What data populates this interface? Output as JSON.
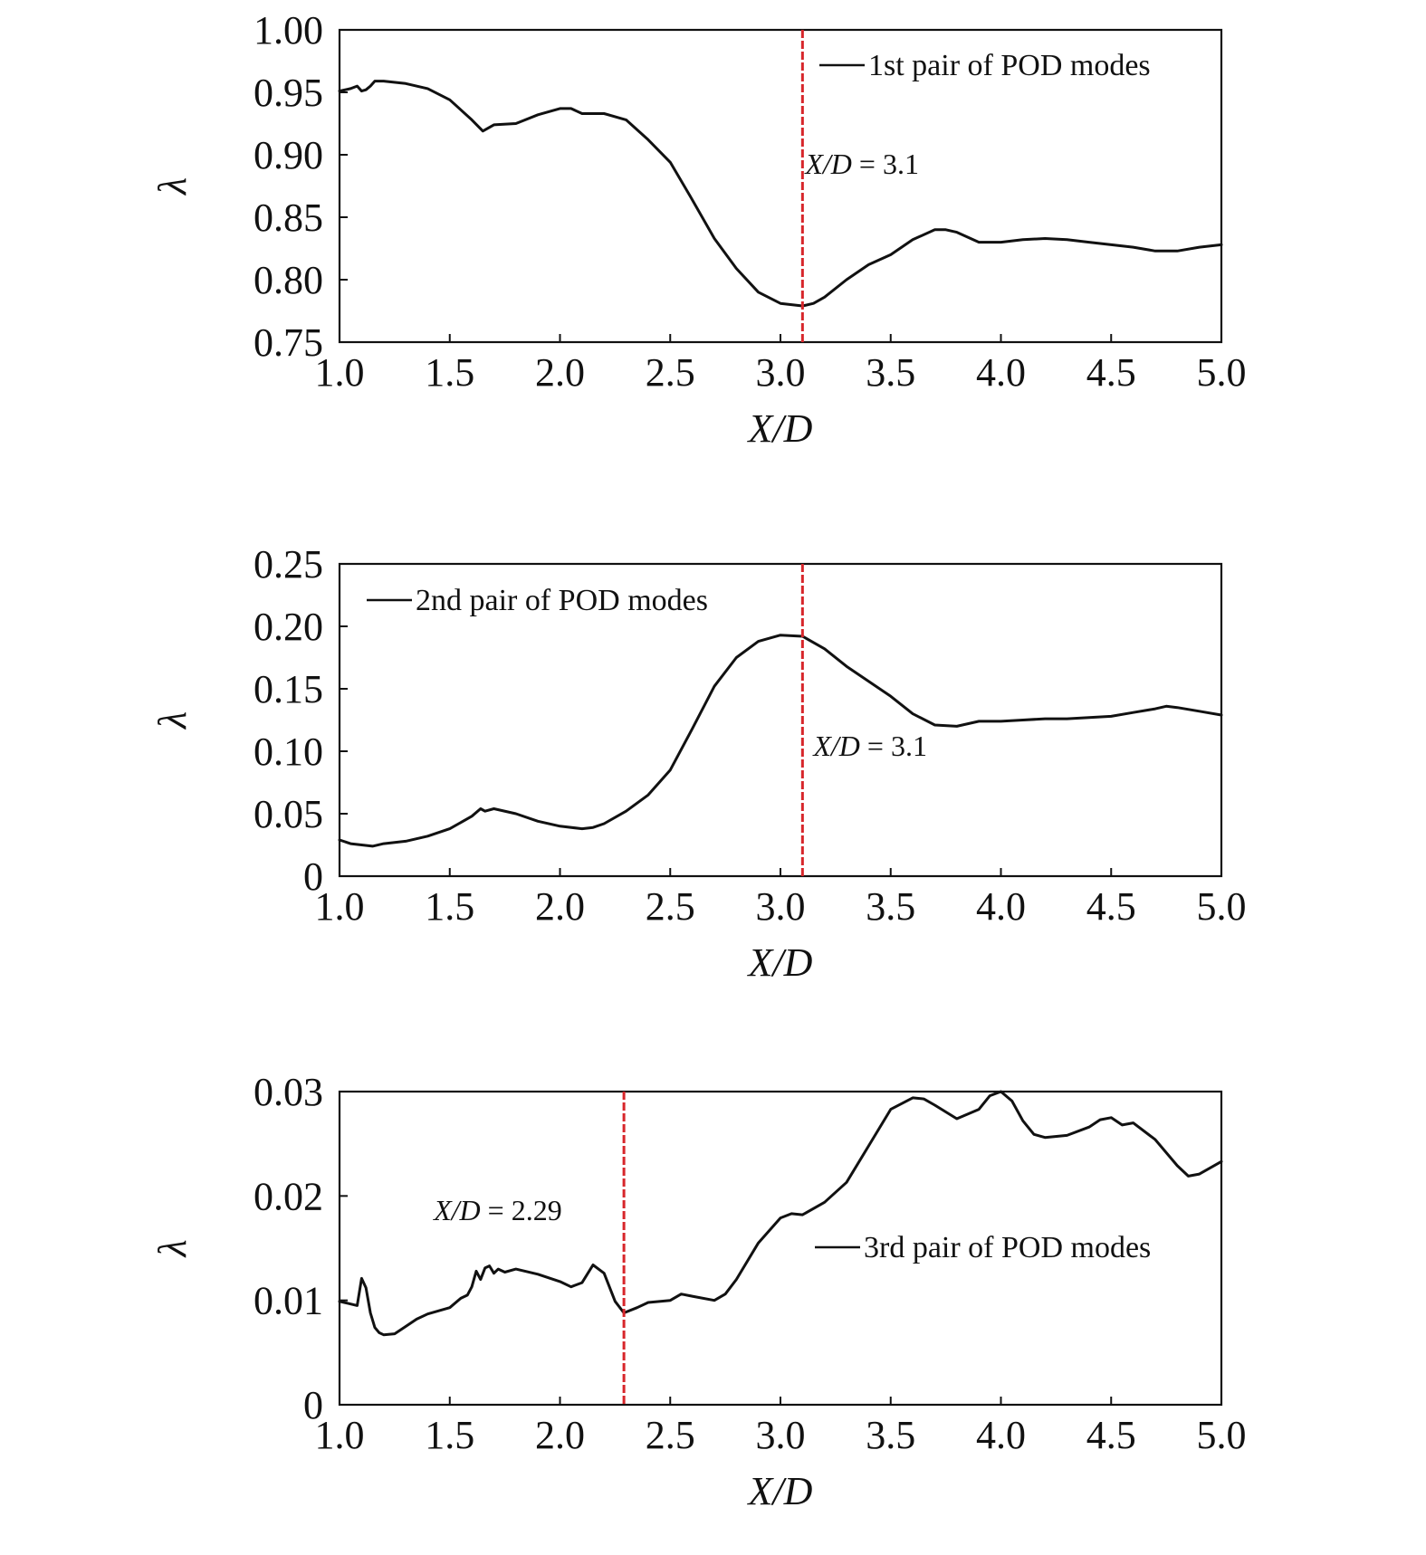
{
  "chart_data": [
    {
      "type": "line",
      "xlabel": "X/D",
      "ylabel": "λ",
      "xlim": [
        1.0,
        5.0
      ],
      "ylim": [
        0.75,
        1.0
      ],
      "xticks": [
        "1.0",
        "1.5",
        "2.0",
        "2.5",
        "3.0",
        "3.5",
        "4.0",
        "4.5",
        "5.0"
      ],
      "xtick_values": [
        1.0,
        1.5,
        2.0,
        2.5,
        3.0,
        3.5,
        4.0,
        4.5,
        5.0
      ],
      "yticks": [
        "0.75",
        "0.80",
        "0.85",
        "0.90",
        "0.95",
        "1.00"
      ],
      "ytick_values": [
        0.75,
        0.8,
        0.85,
        0.9,
        0.95,
        1.0
      ],
      "grid": false,
      "legend_position": "top-right",
      "series": [
        {
          "name": "1st pair of POD modes",
          "color": "#111111",
          "x": [
            1.0,
            1.05,
            1.08,
            1.1,
            1.12,
            1.14,
            1.16,
            1.2,
            1.3,
            1.4,
            1.5,
            1.6,
            1.65,
            1.7,
            1.8,
            1.9,
            2.0,
            2.05,
            2.1,
            2.2,
            2.3,
            2.4,
            2.5,
            2.6,
            2.7,
            2.8,
            2.9,
            3.0,
            3.1,
            3.15,
            3.2,
            3.3,
            3.4,
            3.5,
            3.6,
            3.7,
            3.75,
            3.8,
            3.9,
            4.0,
            4.1,
            4.2,
            4.3,
            4.4,
            4.5,
            4.6,
            4.7,
            4.8,
            4.9,
            5.0
          ],
          "y": [
            0.951,
            0.953,
            0.955,
            0.951,
            0.952,
            0.955,
            0.959,
            0.959,
            0.957,
            0.953,
            0.944,
            0.928,
            0.919,
            0.924,
            0.925,
            0.932,
            0.937,
            0.937,
            0.933,
            0.933,
            0.928,
            0.912,
            0.894,
            0.864,
            0.833,
            0.809,
            0.79,
            0.781,
            0.779,
            0.781,
            0.786,
            0.8,
            0.812,
            0.82,
            0.832,
            0.84,
            0.84,
            0.838,
            0.83,
            0.83,
            0.832,
            0.833,
            0.832,
            0.83,
            0.828,
            0.826,
            0.823,
            0.823,
            0.826,
            0.828
          ]
        }
      ],
      "annotations": [
        {
          "x": 3.1,
          "text_italic": "X/D",
          "text_rest": " = 3.1",
          "color": "#d7262b"
        }
      ]
    },
    {
      "type": "line",
      "xlabel": "X/D",
      "ylabel": "λ",
      "xlim": [
        1.0,
        5.0
      ],
      "ylim": [
        0.0,
        0.25
      ],
      "xticks": [
        "1.0",
        "1.5",
        "2.0",
        "2.5",
        "3.0",
        "3.5",
        "4.0",
        "4.5",
        "5.0"
      ],
      "xtick_values": [
        1.0,
        1.5,
        2.0,
        2.5,
        3.0,
        3.5,
        4.0,
        4.5,
        5.0
      ],
      "yticks": [
        "0",
        "0.05",
        "0.10",
        "0.15",
        "0.20",
        "0.25"
      ],
      "ytick_values": [
        0.0,
        0.05,
        0.1,
        0.15,
        0.2,
        0.25
      ],
      "grid": false,
      "legend_position": "top-left",
      "series": [
        {
          "name": "2nd pair of POD modes",
          "color": "#111111",
          "x": [
            1.0,
            1.05,
            1.1,
            1.15,
            1.2,
            1.3,
            1.4,
            1.5,
            1.6,
            1.64,
            1.66,
            1.7,
            1.8,
            1.9,
            2.0,
            2.1,
            2.15,
            2.2,
            2.3,
            2.4,
            2.5,
            2.6,
            2.7,
            2.8,
            2.9,
            3.0,
            3.1,
            3.2,
            3.3,
            3.4,
            3.5,
            3.6,
            3.7,
            3.8,
            3.9,
            4.0,
            4.1,
            4.2,
            4.3,
            4.4,
            4.5,
            4.6,
            4.7,
            4.75,
            4.8,
            4.9,
            5.0
          ],
          "y": [
            0.029,
            0.026,
            0.025,
            0.024,
            0.026,
            0.028,
            0.032,
            0.038,
            0.048,
            0.054,
            0.052,
            0.054,
            0.05,
            0.044,
            0.04,
            0.038,
            0.039,
            0.042,
            0.052,
            0.065,
            0.085,
            0.118,
            0.152,
            0.175,
            0.188,
            0.193,
            0.192,
            0.182,
            0.168,
            0.156,
            0.144,
            0.13,
            0.121,
            0.12,
            0.124,
            0.124,
            0.125,
            0.126,
            0.126,
            0.127,
            0.128,
            0.131,
            0.134,
            0.136,
            0.135,
            0.132,
            0.129
          ]
        }
      ],
      "annotations": [
        {
          "x": 3.1,
          "text_italic": "X/D",
          "text_rest": " = 3.1",
          "color": "#d7262b"
        }
      ]
    },
    {
      "type": "line",
      "xlabel": "X/D",
      "ylabel": "λ",
      "xlim": [
        1.0,
        5.0
      ],
      "ylim": [
        0.0,
        0.03
      ],
      "xticks": [
        "1.0",
        "1.5",
        "2.0",
        "2.5",
        "3.0",
        "3.5",
        "4.0",
        "4.5",
        "5.0"
      ],
      "xtick_values": [
        1.0,
        1.5,
        2.0,
        2.5,
        3.0,
        3.5,
        4.0,
        4.5,
        5.0
      ],
      "yticks": [
        "0",
        "0.01",
        "0.02",
        "0.03"
      ],
      "ytick_values": [
        0.0,
        0.01,
        0.02,
        0.03
      ],
      "grid": false,
      "legend_position": "center-right",
      "series": [
        {
          "name": "3rd pair of POD modes",
          "color": "#111111",
          "x": [
            1.0,
            1.04,
            1.08,
            1.1,
            1.12,
            1.14,
            1.16,
            1.18,
            1.2,
            1.25,
            1.3,
            1.35,
            1.4,
            1.5,
            1.55,
            1.58,
            1.6,
            1.62,
            1.64,
            1.66,
            1.68,
            1.7,
            1.72,
            1.75,
            1.8,
            1.9,
            2.0,
            2.05,
            2.1,
            2.15,
            2.2,
            2.25,
            2.29,
            2.35,
            2.4,
            2.5,
            2.55,
            2.6,
            2.7,
            2.75,
            2.8,
            2.9,
            3.0,
            3.05,
            3.1,
            3.2,
            3.3,
            3.4,
            3.5,
            3.6,
            3.65,
            3.7,
            3.8,
            3.9,
            3.95,
            4.0,
            4.05,
            4.1,
            4.15,
            4.2,
            4.3,
            4.4,
            4.45,
            4.5,
            4.55,
            4.6,
            4.7,
            4.8,
            4.85,
            4.9,
            5.0
          ],
          "y": [
            0.0099,
            0.0097,
            0.0095,
            0.0121,
            0.0112,
            0.0088,
            0.0074,
            0.0069,
            0.0067,
            0.0068,
            0.0075,
            0.0082,
            0.0087,
            0.0093,
            0.0102,
            0.0105,
            0.0113,
            0.0128,
            0.012,
            0.0131,
            0.0133,
            0.0126,
            0.013,
            0.0127,
            0.013,
            0.0125,
            0.0118,
            0.0113,
            0.0117,
            0.0134,
            0.0126,
            0.0099,
            0.0088,
            0.0093,
            0.0098,
            0.01,
            0.0106,
            0.0104,
            0.01,
            0.0106,
            0.012,
            0.0155,
            0.0179,
            0.0183,
            0.0182,
            0.0194,
            0.0213,
            0.0248,
            0.0283,
            0.0294,
            0.0293,
            0.0287,
            0.0274,
            0.0283,
            0.0296,
            0.03,
            0.0291,
            0.0272,
            0.0259,
            0.0256,
            0.0258,
            0.0266,
            0.0273,
            0.0275,
            0.0268,
            0.027,
            0.0254,
            0.0229,
            0.0219,
            0.0221,
            0.0233
          ]
        }
      ],
      "annotations": [
        {
          "x": 2.29,
          "text_italic": "X/D",
          "text_rest": " = 2.29",
          "color": "#d7262b"
        }
      ]
    }
  ]
}
